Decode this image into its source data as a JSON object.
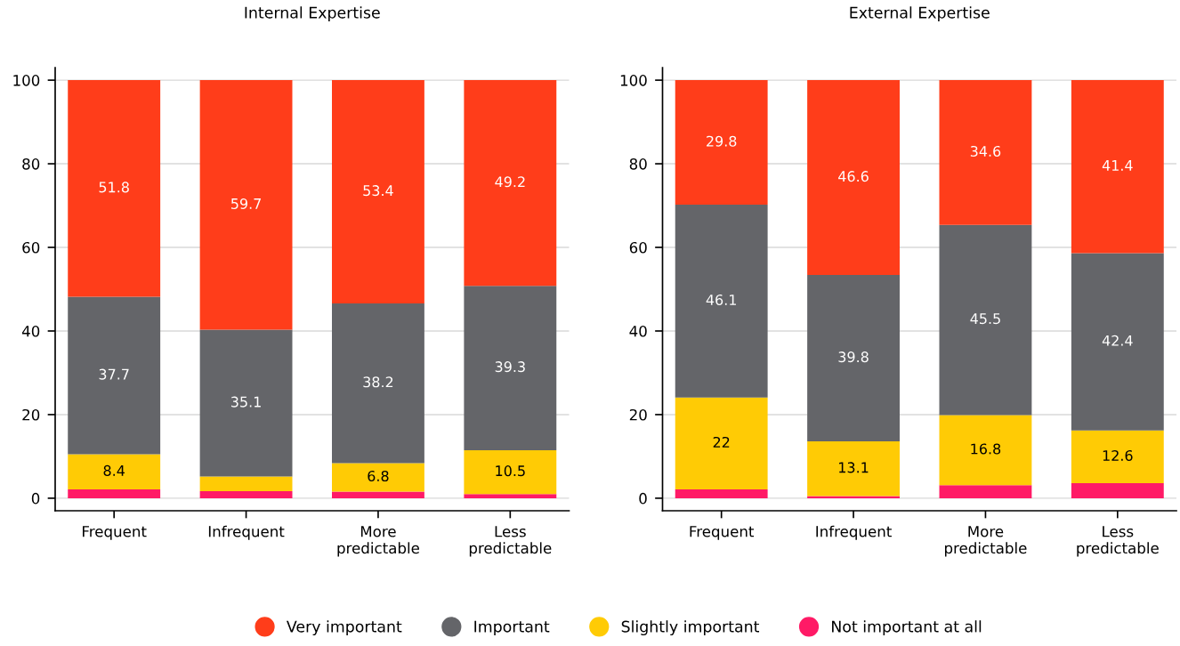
{
  "chart_data": [
    {
      "type": "bar",
      "title": "Internal Expertise",
      "categories": [
        "Frequent",
        "Infrequent",
        "More\npredictable",
        "Less\npredictable"
      ],
      "stacked": true,
      "series": [
        {
          "name": "Not important at all",
          "color": "#ff1a66",
          "values": [
            2.1,
            1.7,
            1.6,
            1.0
          ]
        },
        {
          "name": "Slightly important",
          "color": "#ffcb05",
          "values": [
            8.4,
            3.5,
            6.8,
            10.5
          ],
          "value_labels": [
            "8.4",
            null,
            "6.8",
            "10.5"
          ]
        },
        {
          "name": "Important",
          "color": "#646569",
          "values": [
            37.7,
            35.1,
            38.2,
            39.3
          ],
          "value_labels": [
            "37.7",
            "35.1",
            "38.2",
            "39.3"
          ]
        },
        {
          "name": "Very important",
          "color": "#ff3d1a",
          "values": [
            51.8,
            59.7,
            53.4,
            49.2
          ],
          "value_labels": [
            "51.8",
            "59.7",
            "53.4",
            "49.2"
          ]
        }
      ],
      "ylim": [
        -3,
        103
      ],
      "yticks": [
        0,
        20,
        40,
        60,
        80,
        100
      ],
      "grid": "y",
      "legend": "bottom"
    },
    {
      "type": "bar",
      "title": "External Expertise",
      "categories": [
        "Frequent",
        "Infrequent",
        "More\npredictable",
        "Less\npredictable"
      ],
      "stacked": true,
      "series": [
        {
          "name": "Not important at all",
          "color": "#ff1a66",
          "values": [
            2.1,
            0.5,
            3.1,
            3.6
          ]
        },
        {
          "name": "Slightly important",
          "color": "#ffcb05",
          "values": [
            22,
            13.1,
            16.8,
            12.6
          ],
          "value_labels": [
            "22",
            "13.1",
            "16.8",
            "12.6"
          ]
        },
        {
          "name": "Important",
          "color": "#646569",
          "values": [
            46.1,
            39.8,
            45.5,
            42.4
          ],
          "value_labels": [
            "46.1",
            "39.8",
            "45.5",
            "42.4"
          ]
        },
        {
          "name": "Very important",
          "color": "#ff3d1a",
          "values": [
            29.8,
            46.6,
            34.6,
            41.4
          ],
          "value_labels": [
            "29.8",
            "46.6",
            "34.6",
            "41.4"
          ]
        }
      ],
      "ylim": [
        -3,
        103
      ],
      "yticks": [
        0,
        20,
        40,
        60,
        80,
        100
      ],
      "grid": "y",
      "legend": "bottom"
    }
  ]
}
